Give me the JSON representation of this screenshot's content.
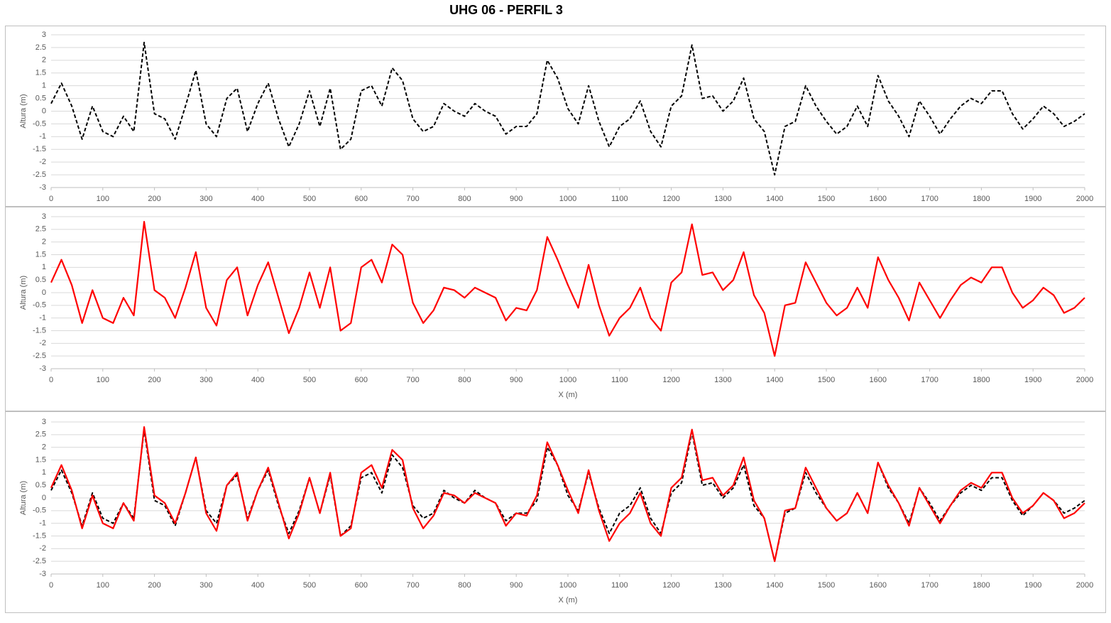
{
  "title": "UHG 06 - PERFIL 3",
  "chart_data": [
    {
      "type": "line",
      "ylabel": "Altura (m)",
      "xlim": [
        0,
        2000
      ],
      "ylim": [
        -3,
        3
      ],
      "xticks": [
        0,
        100,
        200,
        300,
        400,
        500,
        600,
        700,
        800,
        900,
        1000,
        1100,
        1200,
        1300,
        1400,
        1500,
        1600,
        1700,
        1800,
        1900,
        2000
      ],
      "yticks": [
        -3,
        -2.5,
        -2,
        -1.5,
        -1,
        -0.5,
        0,
        0.5,
        1,
        1.5,
        2,
        2.5,
        3
      ],
      "grid": true,
      "x": [
        0,
        20,
        40,
        60,
        80,
        100,
        120,
        140,
        160,
        180,
        200,
        220,
        240,
        260,
        280,
        300,
        320,
        340,
        360,
        380,
        400,
        420,
        440,
        460,
        480,
        500,
        520,
        540,
        560,
        580,
        600,
        620,
        640,
        660,
        680,
        700,
        720,
        740,
        760,
        780,
        800,
        820,
        840,
        860,
        880,
        900,
        920,
        940,
        960,
        980,
        1000,
        1020,
        1040,
        1060,
        1080,
        1100,
        1120,
        1140,
        1160,
        1180,
        1200,
        1220,
        1240,
        1260,
        1280,
        1300,
        1320,
        1340,
        1360,
        1380,
        1400,
        1420,
        1440,
        1460,
        1480,
        1500,
        1520,
        1540,
        1560,
        1580,
        1600,
        1620,
        1640,
        1660,
        1680,
        1700,
        1720,
        1740,
        1760,
        1780,
        1800,
        1820,
        1840,
        1860,
        1880,
        1900,
        1920,
        1940,
        1960,
        1980,
        2000
      ],
      "series": [
        {
          "color": "#000000",
          "dashed": true,
          "values": [
            0.3,
            1.1,
            0.2,
            -1.1,
            0.2,
            -0.8,
            -1.0,
            -0.2,
            -0.8,
            2.7,
            -0.1,
            -0.3,
            -1.1,
            0.2,
            1.6,
            -0.5,
            -1.0,
            0.5,
            0.9,
            -0.8,
            0.3,
            1.1,
            -0.3,
            -1.4,
            -0.5,
            0.8,
            -0.6,
            0.9,
            -1.5,
            -1.1,
            0.8,
            1.0,
            0.2,
            1.7,
            1.2,
            -0.3,
            -0.8,
            -0.6,
            0.3,
            0.0,
            -0.2,
            0.3,
            0.0,
            -0.2,
            -0.9,
            -0.6,
            -0.6,
            -0.1,
            2.0,
            1.3,
            0.1,
            -0.5,
            1.0,
            -0.4,
            -1.4,
            -0.6,
            -0.3,
            0.4,
            -0.8,
            -1.4,
            0.2,
            0.6,
            2.6,
            0.5,
            0.6,
            0.0,
            0.4,
            1.3,
            -0.3,
            -0.8,
            -2.5,
            -0.6,
            -0.4,
            1.0,
            0.2,
            -0.4,
            -0.9,
            -0.6,
            0.2,
            -0.6,
            1.4,
            0.4,
            -0.2,
            -1.0,
            0.4,
            -0.2,
            -0.9,
            -0.3,
            0.2,
            0.5,
            0.3,
            0.8,
            0.8,
            -0.1,
            -0.7,
            -0.3,
            0.2,
            -0.1,
            -0.6,
            -0.4,
            -0.1
          ]
        }
      ]
    },
    {
      "type": "line",
      "ylabel": "Altura (m)",
      "xlabel": "X (m)",
      "xlim": [
        0,
        2000
      ],
      "ylim": [
        -3,
        3
      ],
      "xticks": [
        0,
        100,
        200,
        300,
        400,
        500,
        600,
        700,
        800,
        900,
        1000,
        1100,
        1200,
        1300,
        1400,
        1500,
        1600,
        1700,
        1800,
        1900,
        2000
      ],
      "yticks": [
        -3,
        -2.5,
        -2,
        -1.5,
        -1,
        -0.5,
        0,
        0.5,
        1,
        1.5,
        2,
        2.5,
        3
      ],
      "grid": true,
      "x": [
        0,
        20,
        40,
        60,
        80,
        100,
        120,
        140,
        160,
        180,
        200,
        220,
        240,
        260,
        280,
        300,
        320,
        340,
        360,
        380,
        400,
        420,
        440,
        460,
        480,
        500,
        520,
        540,
        560,
        580,
        600,
        620,
        640,
        660,
        680,
        700,
        720,
        740,
        760,
        780,
        800,
        820,
        840,
        860,
        880,
        900,
        920,
        940,
        960,
        980,
        1000,
        1020,
        1040,
        1060,
        1080,
        1100,
        1120,
        1140,
        1160,
        1180,
        1200,
        1220,
        1240,
        1260,
        1280,
        1300,
        1320,
        1340,
        1360,
        1380,
        1400,
        1420,
        1440,
        1460,
        1480,
        1500,
        1520,
        1540,
        1560,
        1580,
        1600,
        1620,
        1640,
        1660,
        1680,
        1700,
        1720,
        1740,
        1760,
        1780,
        1800,
        1820,
        1840,
        1860,
        1880,
        1900,
        1920,
        1940,
        1960,
        1980,
        2000
      ],
      "series": [
        {
          "color": "#ff0000",
          "dashed": false,
          "values": [
            0.4,
            1.3,
            0.3,
            -1.2,
            0.1,
            -1.0,
            -1.2,
            -0.2,
            -0.9,
            2.8,
            0.1,
            -0.2,
            -1.0,
            0.2,
            1.6,
            -0.6,
            -1.3,
            0.5,
            1.0,
            -0.9,
            0.3,
            1.2,
            -0.2,
            -1.6,
            -0.6,
            0.8,
            -0.6,
            1.0,
            -1.5,
            -1.2,
            1.0,
            1.3,
            0.4,
            1.9,
            1.5,
            -0.4,
            -1.2,
            -0.7,
            0.2,
            0.1,
            -0.2,
            0.2,
            0.0,
            -0.2,
            -1.1,
            -0.6,
            -0.7,
            0.1,
            2.2,
            1.3,
            0.3,
            -0.6,
            1.1,
            -0.5,
            -1.7,
            -1.0,
            -0.6,
            0.2,
            -1.0,
            -1.5,
            0.4,
            0.8,
            2.7,
            0.7,
            0.8,
            0.1,
            0.5,
            1.6,
            -0.1,
            -0.8,
            -2.5,
            -0.5,
            -0.4,
            1.2,
            0.4,
            -0.4,
            -0.9,
            -0.6,
            0.2,
            -0.6,
            1.4,
            0.5,
            -0.2,
            -1.1,
            0.4,
            -0.3,
            -1.0,
            -0.3,
            0.3,
            0.6,
            0.4,
            1.0,
            1.0,
            0.0,
            -0.6,
            -0.3,
            0.2,
            -0.1,
            -0.8,
            -0.6,
            -0.2
          ]
        }
      ]
    },
    {
      "type": "line",
      "ylabel": "Altura (m)",
      "xlabel": "X (m)",
      "xlim": [
        0,
        2000
      ],
      "ylim": [
        -3,
        3
      ],
      "xticks": [
        0,
        100,
        200,
        300,
        400,
        500,
        600,
        700,
        800,
        900,
        1000,
        1100,
        1200,
        1300,
        1400,
        1500,
        1600,
        1700,
        1800,
        1900,
        2000
      ],
      "yticks": [
        -3,
        -2.5,
        -2,
        -1.5,
        -1,
        -0.5,
        0,
        0.5,
        1,
        1.5,
        2,
        2.5,
        3
      ],
      "grid": true,
      "x": [
        0,
        20,
        40,
        60,
        80,
        100,
        120,
        140,
        160,
        180,
        200,
        220,
        240,
        260,
        280,
        300,
        320,
        340,
        360,
        380,
        400,
        420,
        440,
        460,
        480,
        500,
        520,
        540,
        560,
        580,
        600,
        620,
        640,
        660,
        680,
        700,
        720,
        740,
        760,
        780,
        800,
        820,
        840,
        860,
        880,
        900,
        920,
        940,
        960,
        980,
        1000,
        1020,
        1040,
        1060,
        1080,
        1100,
        1120,
        1140,
        1160,
        1180,
        1200,
        1220,
        1240,
        1260,
        1280,
        1300,
        1320,
        1340,
        1360,
        1380,
        1400,
        1420,
        1440,
        1460,
        1480,
        1500,
        1520,
        1540,
        1560,
        1580,
        1600,
        1620,
        1640,
        1660,
        1680,
        1700,
        1720,
        1740,
        1760,
        1780,
        1800,
        1820,
        1840,
        1860,
        1880,
        1900,
        1920,
        1940,
        1960,
        1980,
        2000
      ],
      "series": [
        {
          "color": "#000000",
          "dashed": true,
          "values": [
            0.3,
            1.1,
            0.2,
            -1.1,
            0.2,
            -0.8,
            -1.0,
            -0.2,
            -0.8,
            2.7,
            -0.1,
            -0.3,
            -1.1,
            0.2,
            1.6,
            -0.5,
            -1.0,
            0.5,
            0.9,
            -0.8,
            0.3,
            1.1,
            -0.3,
            -1.4,
            -0.5,
            0.8,
            -0.6,
            0.9,
            -1.5,
            -1.1,
            0.8,
            1.0,
            0.2,
            1.7,
            1.2,
            -0.3,
            -0.8,
            -0.6,
            0.3,
            0.0,
            -0.2,
            0.3,
            0.0,
            -0.2,
            -0.9,
            -0.6,
            -0.6,
            -0.1,
            2.0,
            1.3,
            0.1,
            -0.5,
            1.0,
            -0.4,
            -1.4,
            -0.6,
            -0.3,
            0.4,
            -0.8,
            -1.4,
            0.2,
            0.6,
            2.6,
            0.5,
            0.6,
            0.0,
            0.4,
            1.3,
            -0.3,
            -0.8,
            -2.5,
            -0.6,
            -0.4,
            1.0,
            0.2,
            -0.4,
            -0.9,
            -0.6,
            0.2,
            -0.6,
            1.4,
            0.4,
            -0.2,
            -1.0,
            0.4,
            -0.2,
            -0.9,
            -0.3,
            0.2,
            0.5,
            0.3,
            0.8,
            0.8,
            -0.1,
            -0.7,
            -0.3,
            0.2,
            -0.1,
            -0.6,
            -0.4,
            -0.1
          ]
        },
        {
          "color": "#ff0000",
          "dashed": false,
          "values": [
            0.4,
            1.3,
            0.3,
            -1.2,
            0.1,
            -1.0,
            -1.2,
            -0.2,
            -0.9,
            2.8,
            0.1,
            -0.2,
            -1.0,
            0.2,
            1.6,
            -0.6,
            -1.3,
            0.5,
            1.0,
            -0.9,
            0.3,
            1.2,
            -0.2,
            -1.6,
            -0.6,
            0.8,
            -0.6,
            1.0,
            -1.5,
            -1.2,
            1.0,
            1.3,
            0.4,
            1.9,
            1.5,
            -0.4,
            -1.2,
            -0.7,
            0.2,
            0.1,
            -0.2,
            0.2,
            0.0,
            -0.2,
            -1.1,
            -0.6,
            -0.7,
            0.1,
            2.2,
            1.3,
            0.3,
            -0.6,
            1.1,
            -0.5,
            -1.7,
            -1.0,
            -0.6,
            0.2,
            -1.0,
            -1.5,
            0.4,
            0.8,
            2.7,
            0.7,
            0.8,
            0.1,
            0.5,
            1.6,
            -0.1,
            -0.8,
            -2.5,
            -0.5,
            -0.4,
            1.2,
            0.4,
            -0.4,
            -0.9,
            -0.6,
            0.2,
            -0.6,
            1.4,
            0.5,
            -0.2,
            -1.1,
            0.4,
            -0.3,
            -1.0,
            -0.3,
            0.3,
            0.6,
            0.4,
            1.0,
            1.0,
            0.0,
            -0.6,
            -0.3,
            0.2,
            -0.1,
            -0.8,
            -0.6,
            -0.2
          ]
        }
      ]
    }
  ]
}
